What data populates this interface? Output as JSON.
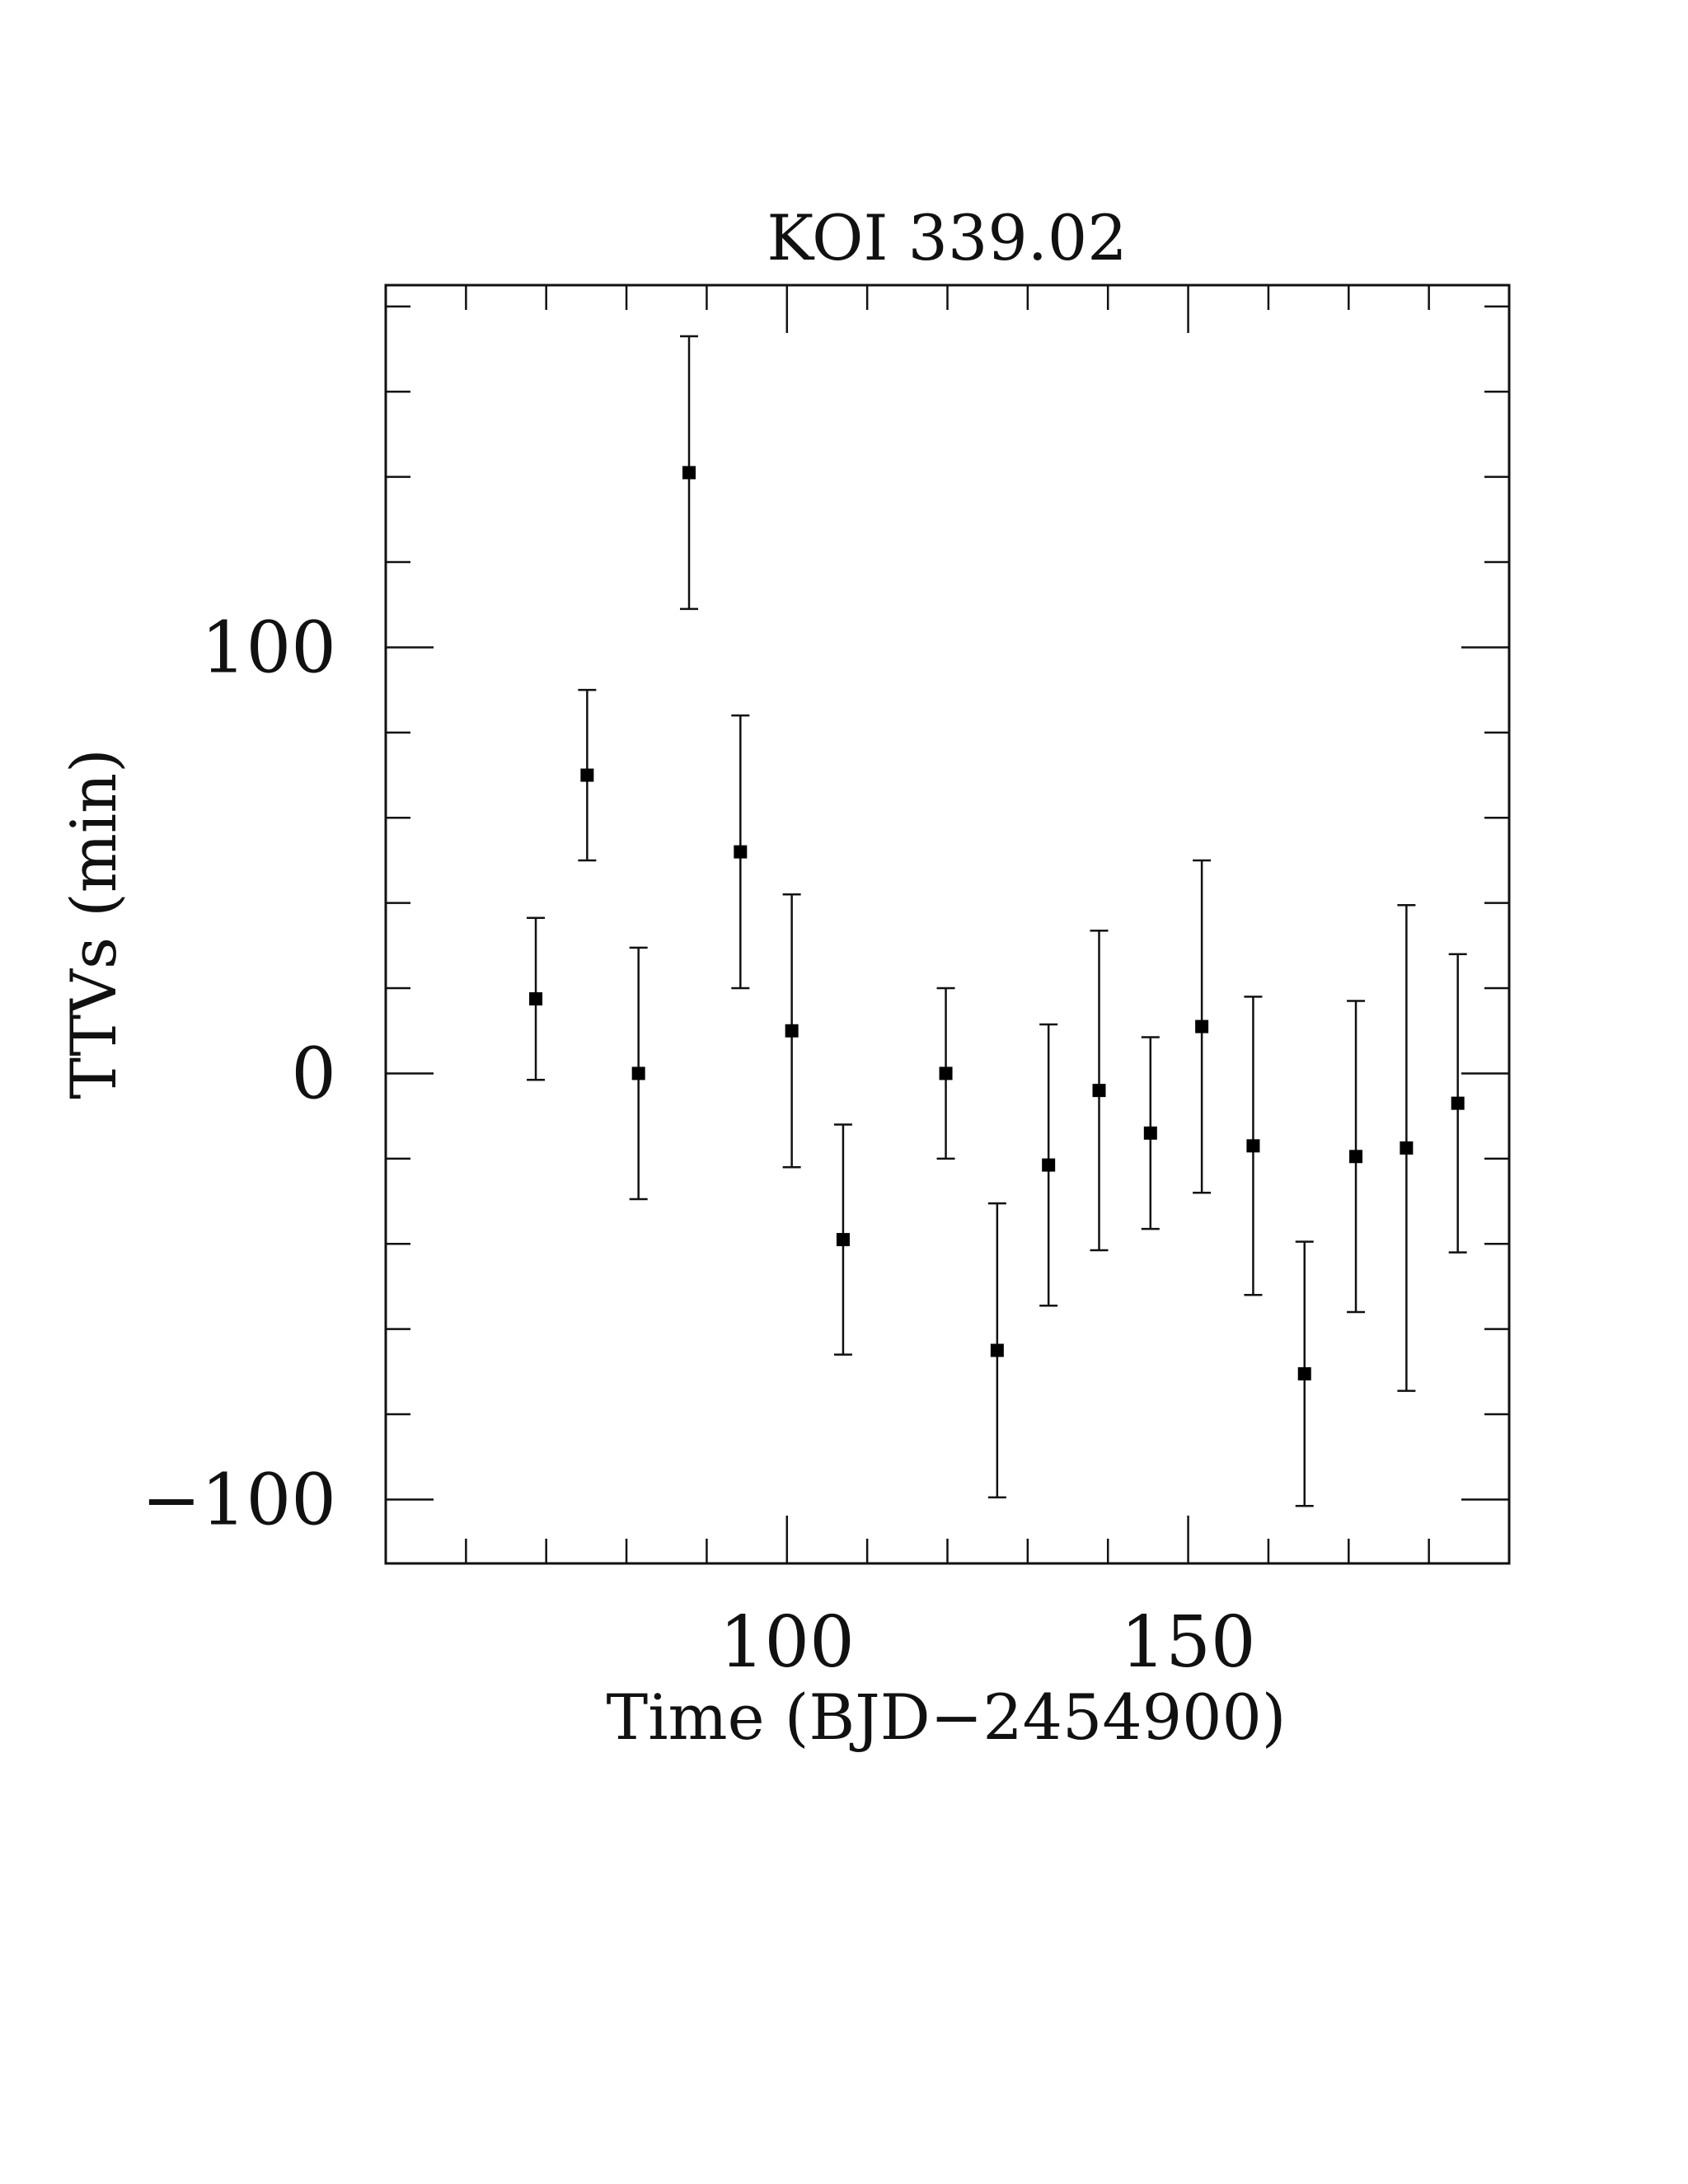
{
  "chart_data": {
    "type": "scatter",
    "title": "KOI 339.02",
    "xlabel": "Time (BJD−2454900)",
    "ylabel": "TTVs (min)",
    "xlim": [
      50,
      190
    ],
    "ylim": [
      -115,
      185
    ],
    "x_ticks": [
      {
        "value": 100,
        "label": "100"
      },
      {
        "value": 150,
        "label": "150"
      }
    ],
    "y_ticks": [
      {
        "value": 100,
        "label": "100"
      },
      {
        "value": 0,
        "label": "0"
      },
      {
        "value": -100,
        "label": "−100"
      }
    ],
    "x_minor_step": 10,
    "y_minor_step": 20,
    "grid": false,
    "marker": "filled-square",
    "error_bars": true,
    "points": [
      {
        "x": 68.7,
        "y": 17.5,
        "err": 19
      },
      {
        "x": 75.1,
        "y": 70.0,
        "err": 20
      },
      {
        "x": 81.5,
        "y": 0.0,
        "err": 29.5
      },
      {
        "x": 87.8,
        "y": 141.0,
        "err": 32
      },
      {
        "x": 94.2,
        "y": 52.0,
        "err": 32
      },
      {
        "x": 100.6,
        "y": 10.0,
        "err": 32
      },
      {
        "x": 107.0,
        "y": -39.0,
        "err": 27
      },
      {
        "x": 119.8,
        "y": 0.0,
        "err": 20
      },
      {
        "x": 126.2,
        "y": -65.0,
        "err": 34.5
      },
      {
        "x": 132.6,
        "y": -21.5,
        "err": 33
      },
      {
        "x": 138.9,
        "y": -4.0,
        "err": 37.5
      },
      {
        "x": 145.3,
        "y": -14.0,
        "err": 22.5
      },
      {
        "x": 151.7,
        "y": 11.0,
        "err": 39
      },
      {
        "x": 158.1,
        "y": -17.0,
        "err": 35
      },
      {
        "x": 164.5,
        "y": -70.5,
        "err": 31
      },
      {
        "x": 170.9,
        "y": -19.5,
        "err": 36.5
      },
      {
        "x": 177.2,
        "y": -17.5,
        "err": 57
      },
      {
        "x": 183.6,
        "y": -7.0,
        "err": 35
      }
    ]
  }
}
